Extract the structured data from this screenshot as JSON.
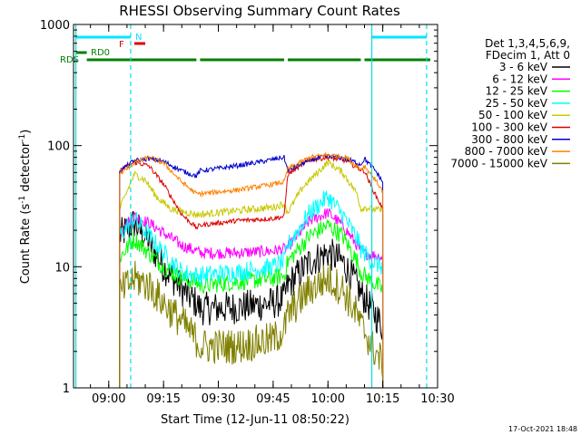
{
  "chart_data": {
    "type": "line",
    "title": "RHESSI Observing Summary Count Rates",
    "xlabel": "Start Time (12-Jun-11 08:50:22)",
    "ylabel_main": "Count Rate (s",
    "ylabel_sup1": "-1",
    "ylabel_mid": " detector",
    "ylabel_sup2": "-1",
    "ylabel_end": ")",
    "yscale": "log",
    "ylim": [
      1,
      1000
    ],
    "xlim": [
      "08:50:22",
      "10:30:00"
    ],
    "x_ticks": [
      "09:00",
      "09:15",
      "09:30",
      "09:45",
      "10:00",
      "10:15",
      "10:30"
    ],
    "y_ticks": [
      "1",
      "10",
      "100",
      "1000"
    ],
    "legend": {
      "placement": "top-right",
      "header": [
        "Det 1,3,4,5,6,9,",
        "FDecim 1, Att 0"
      ],
      "entries": [
        {
          "label": "3 - 6 keV",
          "color": "#000000"
        },
        {
          "label": "6 - 12 keV",
          "color": "#ff00ff"
        },
        {
          "label": "12 - 25 keV",
          "color": "#00ff00"
        },
        {
          "label": "25 - 50 keV",
          "color": "#00ffff"
        },
        {
          "label": "50 - 100 keV",
          "color": "#c8c800"
        },
        {
          "label": "100 - 300 keV",
          "color": "#dd0000"
        },
        {
          "label": "300 - 800 keV",
          "color": "#0000cc"
        },
        {
          "label": "800 - 7000 keV",
          "color": "#ff8000"
        },
        {
          "label": "7000 - 15000 keV",
          "color": "#808000"
        }
      ]
    },
    "flag_labels": {
      "n": "N",
      "f": "F",
      "rd0": "RD0",
      "rds": "RDS"
    },
    "flags": {
      "night": [
        [
          "08:51",
          "09:06"
        ],
        [
          "10:12",
          "10:27"
        ]
      ],
      "flare": [
        [
          "09:07",
          "09:10"
        ]
      ],
      "rd0": [
        [
          "08:51",
          "08:54"
        ]
      ],
      "rds": [
        [
          "08:54",
          "09:24"
        ],
        [
          "09:25",
          "09:48"
        ],
        [
          "09:49",
          "10:09"
        ],
        [
          "10:10",
          "10:28"
        ]
      ]
    },
    "vlines_solid": [
      "08:51",
      "10:12"
    ],
    "vlines_dashed": [
      "09:06",
      "10:27"
    ],
    "series": [
      {
        "name": "3 - 6 keV",
        "color": "#000000",
        "noise": 0.28,
        "points": [
          [
            "09:03",
            18
          ],
          [
            "09:07",
            23
          ],
          [
            "09:11",
            16
          ],
          [
            "09:15",
            10
          ],
          [
            "09:20",
            6.5
          ],
          [
            "09:24",
            5
          ],
          [
            "09:25",
            4.5
          ],
          [
            "09:35",
            4.6
          ],
          [
            "09:45",
            5
          ],
          [
            "09:48",
            5.5
          ],
          [
            "09:49",
            7
          ],
          [
            "09:55",
            11
          ],
          [
            "10:00",
            13
          ],
          [
            "10:04",
            11
          ],
          [
            "10:08",
            7
          ],
          [
            "10:09",
            6
          ],
          [
            "10:10",
            5.5
          ],
          [
            "10:12",
            4.5
          ],
          [
            "10:15",
            3.2
          ]
        ]
      },
      {
        "name": "6 - 12 keV",
        "color": "#ff00ff",
        "noise": 0.1,
        "points": [
          [
            "09:03",
            20
          ],
          [
            "09:07",
            26
          ],
          [
            "09:11",
            23
          ],
          [
            "09:15",
            19
          ],
          [
            "09:20",
            15
          ],
          [
            "09:24",
            13.5
          ],
          [
            "09:25",
            13
          ],
          [
            "09:35",
            13
          ],
          [
            "09:45",
            13.5
          ],
          [
            "09:48",
            14
          ],
          [
            "09:49",
            14.5
          ],
          [
            "09:55",
            24
          ],
          [
            "10:00",
            28
          ],
          [
            "10:04",
            22
          ],
          [
            "10:08",
            15
          ],
          [
            "10:09",
            13.5
          ],
          [
            "10:10",
            13
          ],
          [
            "10:12",
            12.5
          ],
          [
            "10:15",
            12
          ]
        ]
      },
      {
        "name": "12 - 25 keV",
        "color": "#00ff00",
        "noise": 0.15,
        "points": [
          [
            "09:03",
            12
          ],
          [
            "09:07",
            17
          ],
          [
            "09:11",
            13
          ],
          [
            "09:15",
            10
          ],
          [
            "09:20",
            8
          ],
          [
            "09:24",
            7.5
          ],
          [
            "09:25",
            7
          ],
          [
            "09:35",
            7.5
          ],
          [
            "09:45",
            8
          ],
          [
            "09:48",
            8.5
          ],
          [
            "09:49",
            11
          ],
          [
            "09:55",
            18
          ],
          [
            "10:00",
            22
          ],
          [
            "10:04",
            18
          ],
          [
            "10:08",
            11
          ],
          [
            "10:09",
            9
          ],
          [
            "10:10",
            8.5
          ],
          [
            "10:12",
            7.5
          ],
          [
            "10:15",
            6.5
          ]
        ]
      },
      {
        "name": "25 - 50 keV",
        "color": "#00ffff",
        "noise": 0.16,
        "points": [
          [
            "09:03",
            18
          ],
          [
            "09:07",
            25
          ],
          [
            "09:11",
            18
          ],
          [
            "09:15",
            13
          ],
          [
            "09:20",
            9
          ],
          [
            "09:24",
            8.5
          ],
          [
            "09:25",
            8.5
          ],
          [
            "09:35",
            9
          ],
          [
            "09:45",
            10
          ],
          [
            "09:48",
            11
          ],
          [
            "09:49",
            15
          ],
          [
            "09:55",
            28
          ],
          [
            "10:00",
            38
          ],
          [
            "10:04",
            27
          ],
          [
            "10:08",
            17
          ],
          [
            "10:09",
            14
          ],
          [
            "10:10",
            13
          ],
          [
            "10:12",
            11
          ],
          [
            "10:15",
            10
          ]
        ]
      },
      {
        "name": "50 - 100 keV",
        "color": "#c8c800",
        "noise": 0.06,
        "points": [
          [
            "09:03",
            30
          ],
          [
            "09:07",
            58
          ],
          [
            "09:10",
            52
          ],
          [
            "09:13",
            38
          ],
          [
            "09:17",
            30
          ],
          [
            "09:24",
            27
          ],
          [
            "09:25",
            27
          ],
          [
            "09:35",
            29
          ],
          [
            "09:45",
            31
          ],
          [
            "09:48",
            33
          ],
          [
            "09:49",
            28
          ],
          [
            "09:53",
            45
          ],
          [
            "10:00",
            73
          ],
          [
            "10:04",
            60
          ],
          [
            "10:08",
            40
          ],
          [
            "10:09",
            30
          ],
          [
            "10:10",
            31
          ],
          [
            "10:12",
            30
          ],
          [
            "10:15",
            29
          ]
        ]
      },
      {
        "name": "100 - 300 keV",
        "color": "#dd0000",
        "noise": 0.04,
        "points": [
          [
            "09:03",
            62
          ],
          [
            "09:07",
            73
          ],
          [
            "09:11",
            68
          ],
          [
            "09:15",
            48
          ],
          [
            "09:20",
            27
          ],
          [
            "09:24",
            21
          ],
          [
            "09:25",
            22
          ],
          [
            "09:35",
            24
          ],
          [
            "09:45",
            25
          ],
          [
            "09:48",
            26
          ],
          [
            "09:49",
            58
          ],
          [
            "09:55",
            76
          ],
          [
            "10:00",
            80
          ],
          [
            "10:05",
            75
          ],
          [
            "10:09",
            63
          ],
          [
            "10:10",
            62
          ],
          [
            "10:12",
            45
          ],
          [
            "10:15",
            30
          ]
        ]
      },
      {
        "name": "300 - 800 keV",
        "color": "#0000cc",
        "noise": 0.04,
        "points": [
          [
            "09:03",
            62
          ],
          [
            "09:07",
            75
          ],
          [
            "09:11",
            78
          ],
          [
            "09:15",
            74
          ],
          [
            "09:20",
            62
          ],
          [
            "09:24",
            56
          ],
          [
            "09:25",
            62
          ],
          [
            "09:32",
            66
          ],
          [
            "09:40",
            72
          ],
          [
            "09:46",
            78
          ],
          [
            "09:48",
            80
          ],
          [
            "09:49",
            62
          ],
          [
            "09:55",
            76
          ],
          [
            "10:00",
            82
          ],
          [
            "10:05",
            78
          ],
          [
            "10:09",
            70
          ],
          [
            "10:10",
            78
          ],
          [
            "10:13",
            62
          ],
          [
            "10:15",
            50
          ]
        ]
      },
      {
        "name": "800 - 7000 keV",
        "color": "#ff8000",
        "noise": 0.04,
        "points": [
          [
            "09:03",
            58
          ],
          [
            "09:07",
            72
          ],
          [
            "09:11",
            80
          ],
          [
            "09:15",
            72
          ],
          [
            "09:20",
            50
          ],
          [
            "09:24",
            40
          ],
          [
            "09:25",
            40
          ],
          [
            "09:35",
            43
          ],
          [
            "09:45",
            48
          ],
          [
            "09:48",
            50
          ],
          [
            "09:49",
            64
          ],
          [
            "09:55",
            80
          ],
          [
            "10:00",
            84
          ],
          [
            "10:05",
            80
          ],
          [
            "10:09",
            64
          ],
          [
            "10:10",
            68
          ],
          [
            "10:13",
            52
          ],
          [
            "10:15",
            42
          ]
        ]
      },
      {
        "name": "7000 - 15000 keV",
        "color": "#808000",
        "noise": 0.3,
        "points": [
          [
            "09:03",
            6
          ],
          [
            "09:07",
            8
          ],
          [
            "09:11",
            7
          ],
          [
            "09:15",
            5
          ],
          [
            "09:20",
            3.5
          ],
          [
            "09:24",
            2.5
          ],
          [
            "09:25",
            2.2
          ],
          [
            "09:35",
            2.2
          ],
          [
            "09:45",
            2.5
          ],
          [
            "09:48",
            3
          ],
          [
            "09:49",
            4
          ],
          [
            "09:55",
            6.5
          ],
          [
            "10:00",
            8
          ],
          [
            "10:04",
            6.5
          ],
          [
            "10:08",
            4
          ],
          [
            "10:09",
            3.2
          ],
          [
            "10:10",
            3
          ],
          [
            "10:12",
            2.2
          ],
          [
            "10:15",
            1.6
          ]
        ]
      }
    ],
    "footer_date": "17-Oct-2021 18:48"
  }
}
